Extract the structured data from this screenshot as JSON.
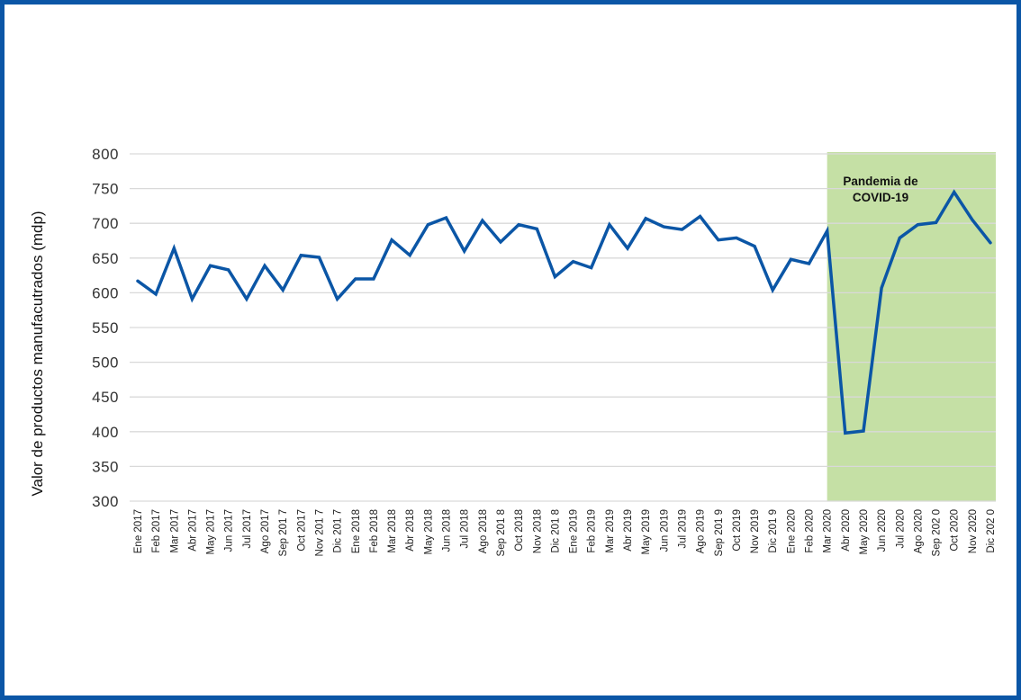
{
  "chart_data": {
    "type": "line",
    "title": "",
    "xlabel": "",
    "ylabel": "Valor de productos manufacutrados (mdp)",
    "ylim": [
      300,
      800
    ],
    "yticks": [
      300,
      350,
      400,
      450,
      500,
      550,
      600,
      650,
      700,
      750,
      800
    ],
    "grid": true,
    "colors": {
      "line": "#0b56a6",
      "highlight": "#c5e0a5",
      "grid": "#d9d9d9",
      "border": "#0b56a6"
    },
    "highlight": {
      "from": "Mar 2020",
      "to": "Dic 202 0",
      "label_lines": [
        "Pandemia de",
        "COVID-19"
      ]
    },
    "categories": [
      "Ene 2017",
      "Feb 2017",
      "Mar 2017",
      "Abr 2017",
      "May 2017",
      "Jun 2017",
      "Jul 2017",
      "Ago 2017",
      "Sep 201 7",
      "Oct 2017",
      "Nov 201 7",
      "Dic 201 7",
      "Ene 2018",
      "Feb 2018",
      "Mar 2018",
      "Abr 2018",
      "May 2018",
      "Jun 2018",
      "Jul 2018",
      "Ago 2018",
      "Sep 201 8",
      "Oct 2018",
      "Nov 2018",
      "Dic 201 8",
      "Ene 2019",
      "Feb 2019",
      "Mar 2019",
      "Abr 2019",
      "May 2019",
      "Jun 2019",
      "Jul 2019",
      "Ago 2019",
      "Sep 201 9",
      "Oct 2019",
      "Nov 2019",
      "Dic 201 9",
      "Ene 2020",
      "Feb 2020",
      "Mar 2020",
      "Abr 2020",
      "May 2020",
      "Jun 2020",
      "Jul 2020",
      "Ago 2020",
      "Sep 202 0",
      "Oct 2020",
      "Nov 2020",
      "Dic 202 0"
    ],
    "series": [
      {
        "name": "",
        "values": [
          617,
          598,
          664,
          591,
          639,
          633,
          591,
          639,
          604,
          654,
          651,
          591,
          620,
          620,
          676,
          654,
          698,
          708,
          660,
          704,
          673,
          698,
          692,
          623,
          645,
          636,
          698,
          664,
          707,
          695,
          691,
          710,
          676,
          679,
          667,
          604,
          648,
          642,
          689,
          398,
          401,
          607,
          679,
          698,
          701,
          745,
          705,
          672
        ]
      }
    ]
  }
}
